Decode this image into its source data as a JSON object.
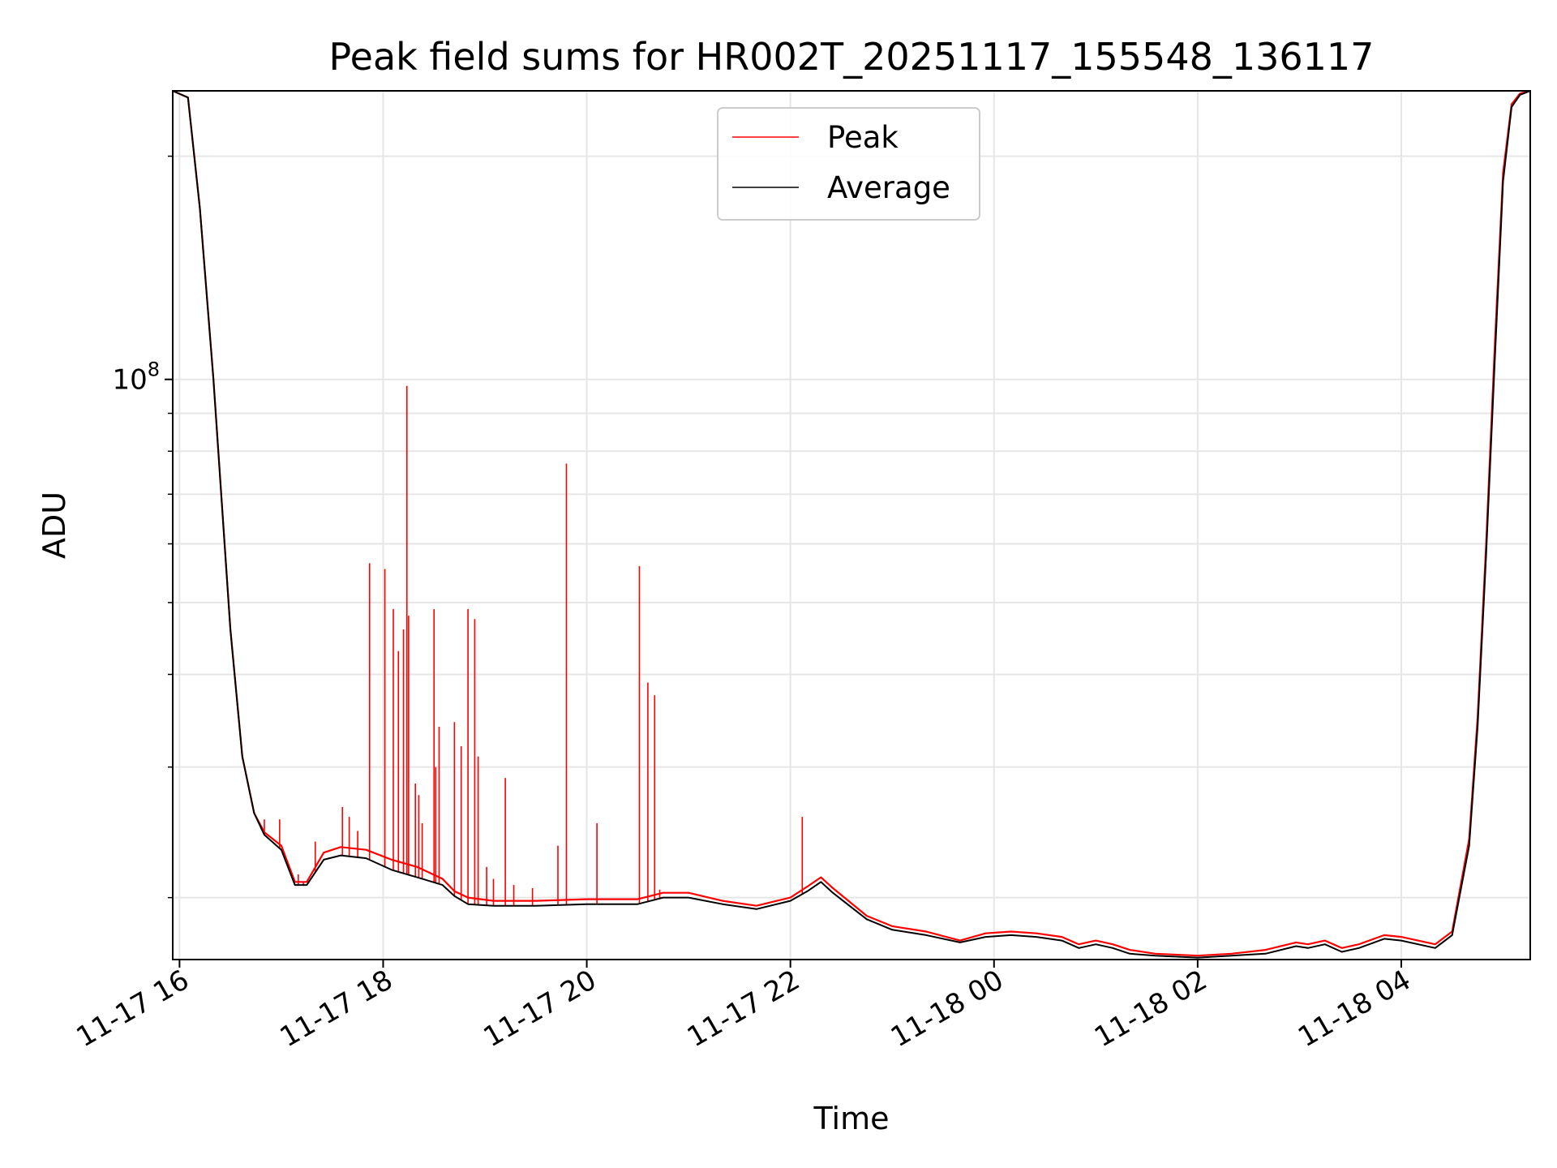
{
  "chart_data": {
    "type": "line",
    "title": "Peak field sums for HR002T_20251117_155548_136117",
    "xlabel": "Time",
    "ylabel": "ADU",
    "y_scale": "log",
    "ylim": [
      16500000,
      245000000
    ],
    "xlim": [
      "2025-11-17T15:56",
      "2025-11-18T05:16"
    ],
    "x_ticks": [
      {
        "label": "11-17 16",
        "time": "2025-11-17T16:00"
      },
      {
        "label": "11-17 18",
        "time": "2025-11-17T18:00"
      },
      {
        "label": "11-17 20",
        "time": "2025-11-17T20:00"
      },
      {
        "label": "11-17 22",
        "time": "2025-11-17T22:00"
      },
      {
        "label": "11-18 00",
        "time": "2025-11-18T00:00"
      },
      {
        "label": "11-18 02",
        "time": "2025-11-18T02:00"
      },
      {
        "label": "11-18 04",
        "time": "2025-11-18T04:00"
      }
    ],
    "y_ticks": [
      {
        "label_base": "10",
        "label_exp": "8",
        "value": 100000000
      }
    ],
    "grid": true,
    "legend_position": "top-center",
    "series": [
      {
        "name": "Peak",
        "color": "#ff0000",
        "x": [
          "2025-11-17T15:56",
          "2025-11-17T16:05",
          "2025-11-17T16:12",
          "2025-11-17T16:20",
          "2025-11-17T16:30",
          "2025-11-17T16:37",
          "2025-11-17T16:44",
          "2025-11-17T16:50",
          "2025-11-17T17:00",
          "2025-11-17T17:08",
          "2025-11-17T17:15",
          "2025-11-17T17:25",
          "2025-11-17T17:35",
          "2025-11-17T17:50",
          "2025-11-17T18:05",
          "2025-11-17T18:20",
          "2025-11-17T18:35",
          "2025-11-17T18:42",
          "2025-11-17T18:50",
          "2025-11-17T19:05",
          "2025-11-17T19:30",
          "2025-11-17T20:00",
          "2025-11-17T20:30",
          "2025-11-17T20:45",
          "2025-11-17T21:00",
          "2025-11-17T21:20",
          "2025-11-17T21:40",
          "2025-11-17T22:00",
          "2025-11-17T22:10",
          "2025-11-17T22:18",
          "2025-11-17T22:25",
          "2025-11-17T22:45",
          "2025-11-17T23:00",
          "2025-11-17T23:20",
          "2025-11-17T23:40",
          "2025-11-17T23:55",
          "2025-11-18T00:10",
          "2025-11-18T00:25",
          "2025-11-18T00:40",
          "2025-11-18T00:50",
          "2025-11-18T01:00",
          "2025-11-18T01:10",
          "2025-11-18T01:20",
          "2025-11-18T01:35",
          "2025-11-18T02:00",
          "2025-11-18T02:20",
          "2025-11-18T02:40",
          "2025-11-18T02:58",
          "2025-11-18T03:05",
          "2025-11-18T03:15",
          "2025-11-18T03:25",
          "2025-11-18T03:35",
          "2025-11-18T03:50",
          "2025-11-18T04:00",
          "2025-11-18T04:20",
          "2025-11-18T04:30",
          "2025-11-18T04:40",
          "2025-11-18T04:45",
          "2025-11-18T04:50",
          "2025-11-18T04:55",
          "2025-11-18T05:00",
          "2025-11-18T05:05",
          "2025-11-18T05:10",
          "2025-11-18T05:16"
        ],
        "y": [
          245000000,
          240000000,
          170000000,
          100000000,
          46000000,
          31000000,
          26000000,
          24500000,
          23500000,
          21000000,
          21000000,
          23000000,
          23400000,
          23200000,
          22500000,
          22000000,
          21200000,
          20400000,
          20000000,
          19800000,
          19800000,
          19900000,
          19900000,
          20300000,
          20300000,
          19800000,
          19500000,
          20000000,
          20700000,
          21300000,
          20600000,
          18900000,
          18300000,
          18000000,
          17500000,
          17900000,
          18000000,
          17900000,
          17700000,
          17300000,
          17500000,
          17300000,
          17000000,
          16800000,
          16700000,
          16800000,
          17000000,
          17400000,
          17300000,
          17500000,
          17100000,
          17300000,
          17800000,
          17700000,
          17300000,
          18000000,
          24000000,
          35000000,
          60000000,
          110000000,
          190000000,
          235000000,
          243000000,
          245000000
        ]
      },
      {
        "name": "Average",
        "color": "#000000",
        "x": [
          "2025-11-17T15:56",
          "2025-11-17T16:05",
          "2025-11-17T16:12",
          "2025-11-17T16:20",
          "2025-11-17T16:30",
          "2025-11-17T16:37",
          "2025-11-17T16:44",
          "2025-11-17T16:50",
          "2025-11-17T17:00",
          "2025-11-17T17:08",
          "2025-11-17T17:15",
          "2025-11-17T17:25",
          "2025-11-17T17:35",
          "2025-11-17T17:50",
          "2025-11-17T18:05",
          "2025-11-17T18:20",
          "2025-11-17T18:35",
          "2025-11-17T18:42",
          "2025-11-17T18:50",
          "2025-11-17T19:05",
          "2025-11-17T19:30",
          "2025-11-17T20:00",
          "2025-11-17T20:30",
          "2025-11-17T20:45",
          "2025-11-17T21:00",
          "2025-11-17T21:20",
          "2025-11-17T21:40",
          "2025-11-17T22:00",
          "2025-11-17T22:10",
          "2025-11-17T22:18",
          "2025-11-17T22:25",
          "2025-11-17T22:45",
          "2025-11-17T23:00",
          "2025-11-17T23:20",
          "2025-11-17T23:40",
          "2025-11-17T23:55",
          "2025-11-18T00:10",
          "2025-11-18T00:25",
          "2025-11-18T00:40",
          "2025-11-18T00:50",
          "2025-11-18T01:00",
          "2025-11-18T01:10",
          "2025-11-18T01:20",
          "2025-11-18T01:35",
          "2025-11-18T02:00",
          "2025-11-18T02:20",
          "2025-11-18T02:40",
          "2025-11-18T02:58",
          "2025-11-18T03:05",
          "2025-11-18T03:15",
          "2025-11-18T03:25",
          "2025-11-18T03:35",
          "2025-11-18T03:50",
          "2025-11-18T04:00",
          "2025-11-18T04:20",
          "2025-11-18T04:30",
          "2025-11-18T04:40",
          "2025-11-18T04:45",
          "2025-11-18T04:50",
          "2025-11-18T04:55",
          "2025-11-18T05:00",
          "2025-11-18T05:05",
          "2025-11-18T05:10",
          "2025-11-18T05:16"
        ],
        "y": [
          245000000,
          240000000,
          170000000,
          100000000,
          46000000,
          31000000,
          26000000,
          24300000,
          23200000,
          20800000,
          20800000,
          22500000,
          22800000,
          22600000,
          21800000,
          21300000,
          20800000,
          20100000,
          19600000,
          19500000,
          19500000,
          19600000,
          19600000,
          20000000,
          20000000,
          19600000,
          19300000,
          19800000,
          20400000,
          21000000,
          20300000,
          18700000,
          18100000,
          17800000,
          17400000,
          17700000,
          17800000,
          17700000,
          17500000,
          17100000,
          17300000,
          17100000,
          16800000,
          16700000,
          16600000,
          16700000,
          16800000,
          17200000,
          17100000,
          17300000,
          16900000,
          17100000,
          17600000,
          17500000,
          17100000,
          17800000,
          23500000,
          34000000,
          58000000,
          105000000,
          185000000,
          233000000,
          242000000,
          245000000
        ]
      }
    ],
    "peak_spikes": [
      {
        "time": "2025-11-17T16:46",
        "value": 25500000
      },
      {
        "time": "2025-11-17T16:50",
        "value": 25500000
      },
      {
        "time": "2025-11-17T16:59",
        "value": 25500000
      },
      {
        "time": "2025-11-17T17:10",
        "value": 21500000
      },
      {
        "time": "2025-11-17T17:13",
        "value": 21000000
      },
      {
        "time": "2025-11-17T17:20",
        "value": 23800000
      },
      {
        "time": "2025-11-17T17:36",
        "value": 26500000
      },
      {
        "time": "2025-11-17T17:40",
        "value": 25700000
      },
      {
        "time": "2025-11-17T17:45",
        "value": 24600000
      },
      {
        "time": "2025-11-17T17:52",
        "value": 56500000
      },
      {
        "time": "2025-11-17T18:01",
        "value": 55500000
      },
      {
        "time": "2025-11-17T18:06",
        "value": 49000000
      },
      {
        "time": "2025-11-17T18:09",
        "value": 43000000
      },
      {
        "time": "2025-11-17T18:12",
        "value": 46000000
      },
      {
        "time": "2025-11-17T18:14",
        "value": 98000000
      },
      {
        "time": "2025-11-17T18:15",
        "value": 48000000
      },
      {
        "time": "2025-11-17T18:19",
        "value": 28500000
      },
      {
        "time": "2025-11-17T18:21",
        "value": 27500000
      },
      {
        "time": "2025-11-17T18:23",
        "value": 25200000
      },
      {
        "time": "2025-11-17T18:30",
        "value": 49000000
      },
      {
        "time": "2025-11-17T18:31",
        "value": 30000000
      },
      {
        "time": "2025-11-17T18:33",
        "value": 34000000
      },
      {
        "time": "2025-11-17T18:42",
        "value": 34500000
      },
      {
        "time": "2025-11-17T18:46",
        "value": 32000000
      },
      {
        "time": "2025-11-17T18:50",
        "value": 49000000
      },
      {
        "time": "2025-11-17T18:54",
        "value": 47500000
      },
      {
        "time": "2025-11-17T18:56",
        "value": 31000000
      },
      {
        "time": "2025-11-17T19:01",
        "value": 22000000
      },
      {
        "time": "2025-11-17T19:05",
        "value": 21200000
      },
      {
        "time": "2025-11-17T19:12",
        "value": 29000000
      },
      {
        "time": "2025-11-17T19:17",
        "value": 20800000
      },
      {
        "time": "2025-11-17T19:28",
        "value": 20600000
      },
      {
        "time": "2025-11-17T19:43",
        "value": 23500000
      },
      {
        "time": "2025-11-17T19:48",
        "value": 77000000
      },
      {
        "time": "2025-11-17T20:06",
        "value": 25200000
      },
      {
        "time": "2025-11-17T20:31",
        "value": 56000000
      },
      {
        "time": "2025-11-17T20:36",
        "value": 39000000
      },
      {
        "time": "2025-11-17T20:40",
        "value": 37500000
      },
      {
        "time": "2025-11-17T20:43",
        "value": 20500000
      },
      {
        "time": "2025-11-17T22:07",
        "value": 25700000
      }
    ]
  },
  "legend": {
    "items": [
      {
        "label": "Peak",
        "color": "#ff0000"
      },
      {
        "label": "Average",
        "color": "#000000"
      }
    ]
  }
}
